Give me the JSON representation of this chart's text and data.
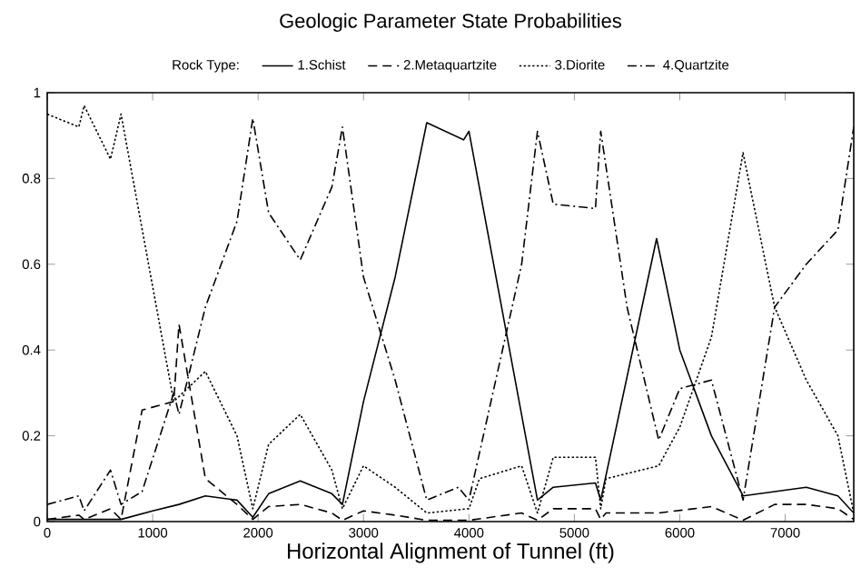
{
  "chart_data": {
    "type": "line",
    "title": "Geologic Parameter State Probabilities",
    "xlabel": "Horizontal Alignment of Tunnel (ft)",
    "legend_title": "Rock Type:",
    "legend": "top",
    "xlim": [
      0,
      7650
    ],
    "ylim": [
      0,
      1
    ],
    "xticks": [
      0,
      1000,
      2000,
      3000,
      4000,
      5000,
      6000,
      7000
    ],
    "yticks": [
      0,
      0.2,
      0.4,
      0.6,
      0.8,
      1
    ],
    "grid": false,
    "marker": "none",
    "series": [
      {
        "name": "1.Schist",
        "color": "#000000",
        "line_style": "solid",
        "x": [
          0,
          700,
          1000,
          1250,
          1500,
          1800,
          1950,
          2100,
          2400,
          2700,
          2800,
          3000,
          3300,
          3600,
          3950,
          4000,
          4650,
          4800,
          5200,
          5250,
          5780,
          6000,
          6300,
          6600,
          7200,
          7500,
          7650
        ],
        "values": [
          0.005,
          0.005,
          0.025,
          0.04,
          0.06,
          0.05,
          0.01,
          0.065,
          0.095,
          0.065,
          0.04,
          0.28,
          0.57,
          0.93,
          0.89,
          0.91,
          0.05,
          0.08,
          0.09,
          0.05,
          0.66,
          0.4,
          0.2,
          0.06,
          0.08,
          0.06,
          0.02
        ]
      },
      {
        "name": "2.Metaquartzite",
        "color": "#000000",
        "line_style": "dashed",
        "x": [
          0,
          300,
          350,
          600,
          700,
          900,
          1200,
          1250,
          1500,
          1800,
          1950,
          2100,
          2400,
          2700,
          2800,
          3000,
          3300,
          3600,
          4000,
          4500,
          4650,
          4800,
          5200,
          5250,
          5300,
          5800,
          6300,
          6600,
          6900,
          7200,
          7500,
          7650
        ],
        "values": [
          0.005,
          0.015,
          0.005,
          0.03,
          0.005,
          0.26,
          0.28,
          0.46,
          0.1,
          0.04,
          0.005,
          0.035,
          0.04,
          0.02,
          0.003,
          0.025,
          0.015,
          0.003,
          0.003,
          0.02,
          0.003,
          0.03,
          0.03,
          0.005,
          0.02,
          0.02,
          0.035,
          0.003,
          0.04,
          0.04,
          0.03,
          0.005
        ]
      },
      {
        "name": "3.Diorite",
        "color": "#000000",
        "line_style": "dotted",
        "x": [
          0,
          300,
          350,
          600,
          700,
          1200,
          1500,
          1800,
          1950,
          2100,
          2400,
          2700,
          2800,
          3000,
          3300,
          3600,
          4000,
          4100,
          4500,
          4650,
          4800,
          5200,
          5250,
          5300,
          5800,
          6000,
          6300,
          6600,
          6900,
          7200,
          7500,
          7650
        ],
        "values": [
          0.95,
          0.92,
          0.97,
          0.845,
          0.95,
          0.28,
          0.35,
          0.2,
          0.03,
          0.18,
          0.25,
          0.12,
          0.03,
          0.13,
          0.08,
          0.02,
          0.03,
          0.1,
          0.13,
          0.02,
          0.15,
          0.15,
          0.03,
          0.1,
          0.13,
          0.22,
          0.43,
          0.86,
          0.5,
          0.33,
          0.2,
          0.02
        ]
      },
      {
        "name": "4.Quartzite",
        "color": "#000000",
        "line_style": "dashdot",
        "x": [
          0,
          300,
          350,
          600,
          700,
          900,
          1200,
          1250,
          1500,
          1800,
          1950,
          2100,
          2400,
          2700,
          2800,
          3000,
          3300,
          3600,
          3900,
          4000,
          4500,
          4650,
          4800,
          5200,
          5250,
          5500,
          5800,
          6000,
          6300,
          6600,
          6900,
          7200,
          7500,
          7650
        ],
        "values": [
          0.04,
          0.06,
          0.025,
          0.12,
          0.04,
          0.07,
          0.3,
          0.25,
          0.5,
          0.7,
          0.94,
          0.72,
          0.61,
          0.78,
          0.92,
          0.57,
          0.33,
          0.05,
          0.08,
          0.05,
          0.6,
          0.91,
          0.74,
          0.73,
          0.91,
          0.5,
          0.19,
          0.31,
          0.33,
          0.05,
          0.5,
          0.6,
          0.68,
          0.92
        ]
      }
    ]
  }
}
